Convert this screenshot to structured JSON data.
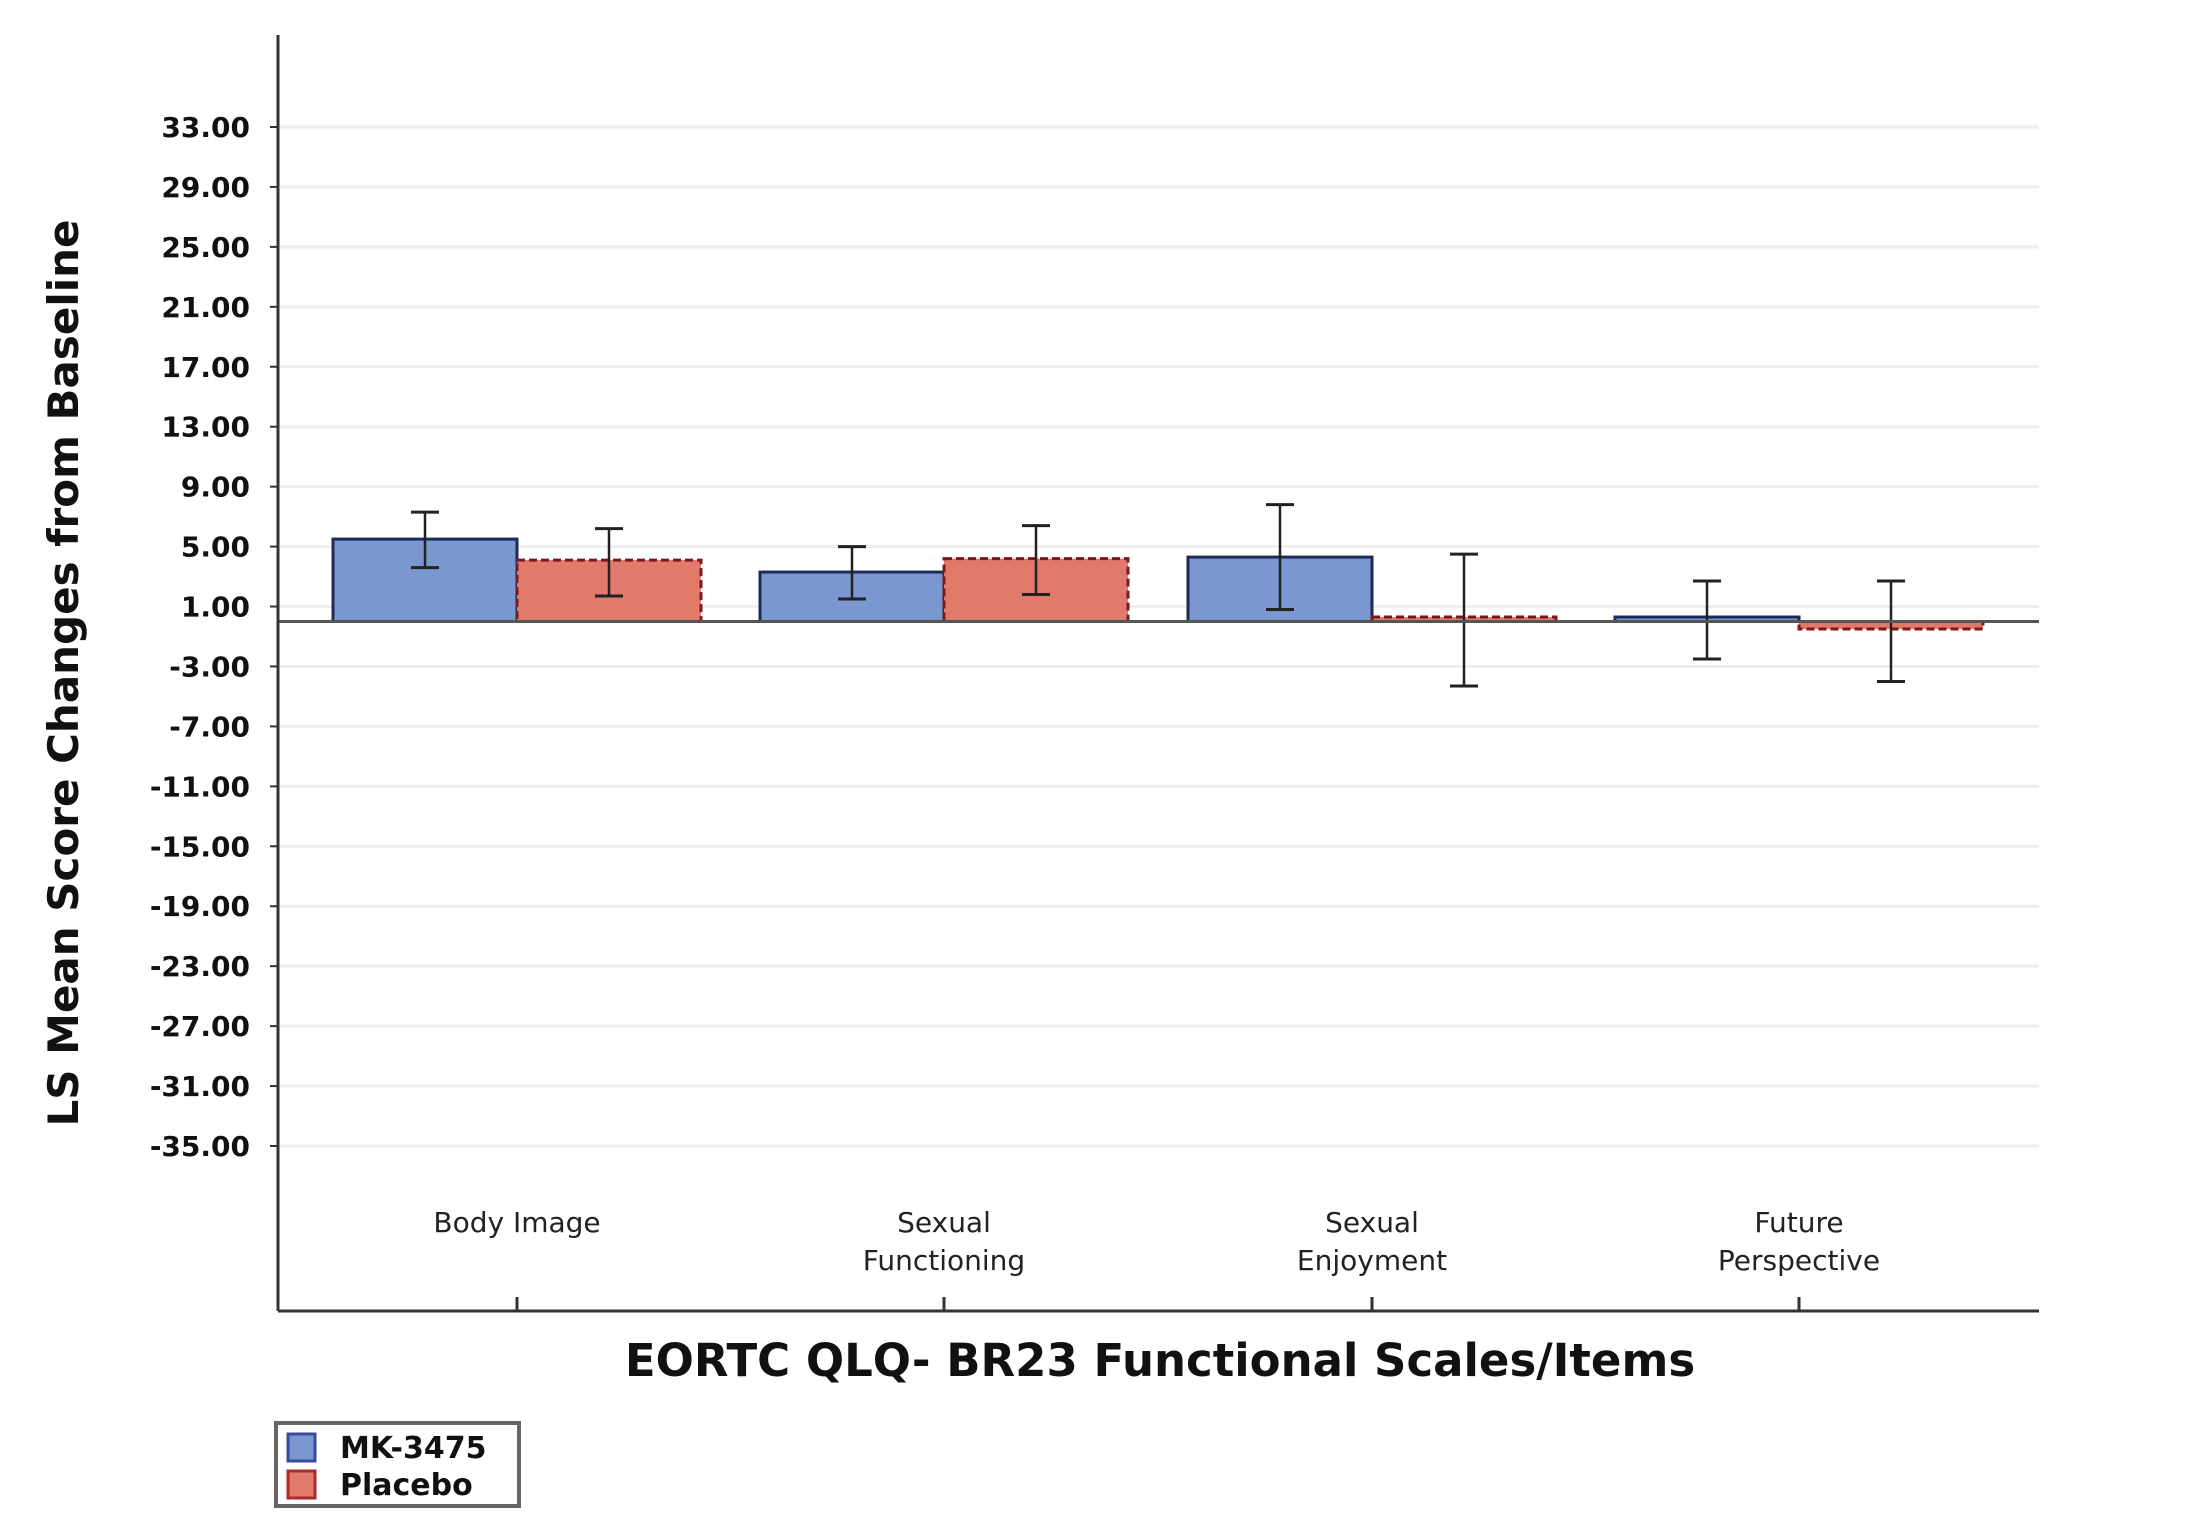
{
  "chart_data": {
    "type": "bar",
    "title": "",
    "xlabel": "EORTC QLQ- BR23 Functional Scales/Items",
    "ylabel": "LS Mean Score Changes from Baseline",
    "ylim": [
      -35,
      33
    ],
    "yticks": [
      33,
      29,
      25,
      21,
      17,
      13,
      9,
      5,
      1,
      -3,
      -7,
      -11,
      -15,
      -19,
      -23,
      -27,
      -31,
      -35
    ],
    "ytick_labels": [
      "33.00",
      "29.00",
      "25.00",
      "21.00",
      "17.00",
      "13.00",
      "9.00",
      "5.00",
      "1.00",
      "-3.00",
      "-7.00",
      "-11.00",
      "-15.00",
      "-19.00",
      "-23.00",
      "-27.00",
      "-31.00",
      "-35.00"
    ],
    "grid": true,
    "legend_placement": "bottom-left",
    "categories": [
      [
        "Body Image"
      ],
      [
        "Sexual",
        "Functioning"
      ],
      [
        "Sexual",
        "Enjoyment"
      ],
      [
        "Future",
        "Perspective"
      ]
    ],
    "series": [
      {
        "name": "MK-3475",
        "color": "#7b97cf",
        "edge": "#1f2a5a",
        "values": [
          5.5,
          3.3,
          4.3,
          0.3
        ],
        "err_low": [
          3.6,
          1.5,
          0.8,
          -2.5
        ],
        "err_high": [
          7.3,
          5.0,
          7.8,
          2.7
        ]
      },
      {
        "name": "Placebo",
        "color": "#e07a6a",
        "edge": "#7a1a1a",
        "values": [
          4.1,
          4.2,
          0.3,
          -0.5
        ],
        "err_low": [
          1.7,
          1.8,
          -4.3,
          -4.0
        ],
        "err_high": [
          6.2,
          6.4,
          4.5,
          2.7
        ]
      }
    ]
  }
}
